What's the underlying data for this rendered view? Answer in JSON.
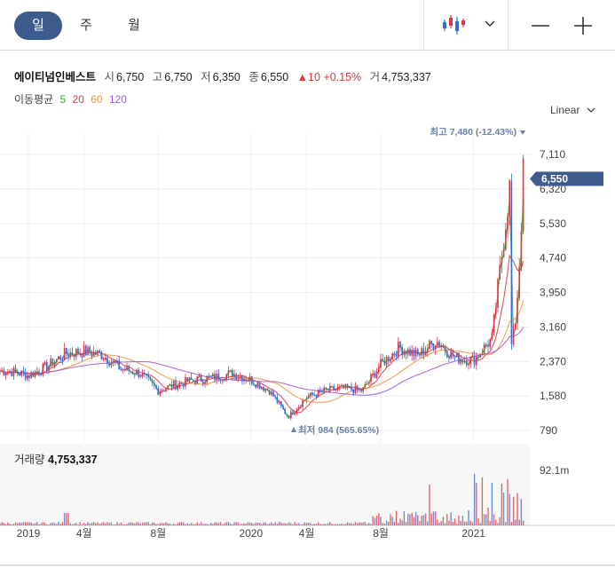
{
  "toolbar": {
    "period_tabs": [
      "일",
      "주",
      "월"
    ],
    "active_period": "일"
  },
  "quote": {
    "name": "에이티넘인베스트",
    "open_label": "시",
    "open": "6,750",
    "high_label": "고",
    "high": "6,750",
    "low_label": "저",
    "low": "6,350",
    "close_label": "종",
    "close": "6,550",
    "change": "▲10",
    "change_pct": "+0.15%",
    "volume_label": "거",
    "volume": "4,753,337"
  },
  "ma_legend": {
    "label": "이동평균",
    "periods": [
      {
        "value": "5",
        "color": "#3aa63a"
      },
      {
        "value": "20",
        "color": "#e0343e"
      },
      {
        "value": "60",
        "color": "#f0913a"
      },
      {
        "value": "120",
        "color": "#9c58d8"
      }
    ]
  },
  "scale_mode": "Linear",
  "volume_panel": {
    "label": "거래량",
    "value": "4,753,337",
    "axis_label": "92.1m"
  },
  "colors": {
    "up": "#e0343e",
    "down": "#2f6fd6",
    "accent": "#3e5b8e",
    "annotation": "#6b7fa8"
  },
  "chart_data": {
    "type": "candlestick",
    "price_axis": {
      "ticks": [
        "7,110",
        "6,320",
        "5,530",
        "4,740",
        "3,950",
        "3,160",
        "2,370",
        "1,580",
        "790"
      ],
      "tick_values": [
        7110,
        6320,
        5530,
        4740,
        3950,
        3160,
        2370,
        1580,
        790
      ],
      "ylim": [
        790,
        7110
      ]
    },
    "x_axis": {
      "labels": [
        "2019",
        "4월",
        "8월",
        "2020",
        "4월",
        "8월",
        "2021"
      ],
      "label_dates": [
        "2019-01",
        "2019-04",
        "2019-08",
        "2020-01",
        "2020-04",
        "2020-08",
        "2021-01"
      ]
    },
    "current_price": {
      "label": "6,550",
      "value": 6550
    },
    "high_marker": {
      "text": "최고 7,480 (-12.43%)",
      "value": 7480
    },
    "low_marker": {
      "text": "최저 984 (565.65%)",
      "value": 984
    },
    "price_path": [
      {
        "x": "2018-12",
        "y": 2150
      },
      {
        "x": "2019-01",
        "y": 2050
      },
      {
        "x": "2019-02",
        "y": 2250
      },
      {
        "x": "2019-03",
        "y": 2550
      },
      {
        "x": "2019-04",
        "y": 2600
      },
      {
        "x": "2019-05",
        "y": 2520
      },
      {
        "x": "2019-06",
        "y": 2200
      },
      {
        "x": "2019-07",
        "y": 2100
      },
      {
        "x": "2019-08",
        "y": 1700
      },
      {
        "x": "2019-09",
        "y": 1850
      },
      {
        "x": "2019-10",
        "y": 1950
      },
      {
        "x": "2019-11",
        "y": 2000
      },
      {
        "x": "2019-12",
        "y": 2100
      },
      {
        "x": "2020-01",
        "y": 1950
      },
      {
        "x": "2020-02",
        "y": 1700
      },
      {
        "x": "2020-03",
        "y": 1100
      },
      {
        "x": "2020-04",
        "y": 1550
      },
      {
        "x": "2020-05",
        "y": 1700
      },
      {
        "x": "2020-06",
        "y": 1750
      },
      {
        "x": "2020-07",
        "y": 1700
      },
      {
        "x": "2020-08",
        "y": 2300
      },
      {
        "x": "2020-09",
        "y": 2700
      },
      {
        "x": "2020-10",
        "y": 2500
      },
      {
        "x": "2020-11",
        "y": 2850
      },
      {
        "x": "2020-12",
        "y": 2450
      },
      {
        "x": "2021-01",
        "y": 2400
      },
      {
        "x": "2021-02",
        "y": 2900
      },
      {
        "x": "2021-03",
        "y": 6550
      }
    ],
    "ma": [
      {
        "name": "5",
        "color": "#3aa63a"
      },
      {
        "name": "20",
        "color": "#e0343e"
      },
      {
        "name": "60",
        "color": "#f0913a"
      },
      {
        "name": "120",
        "color": "#9c58d8"
      }
    ]
  }
}
